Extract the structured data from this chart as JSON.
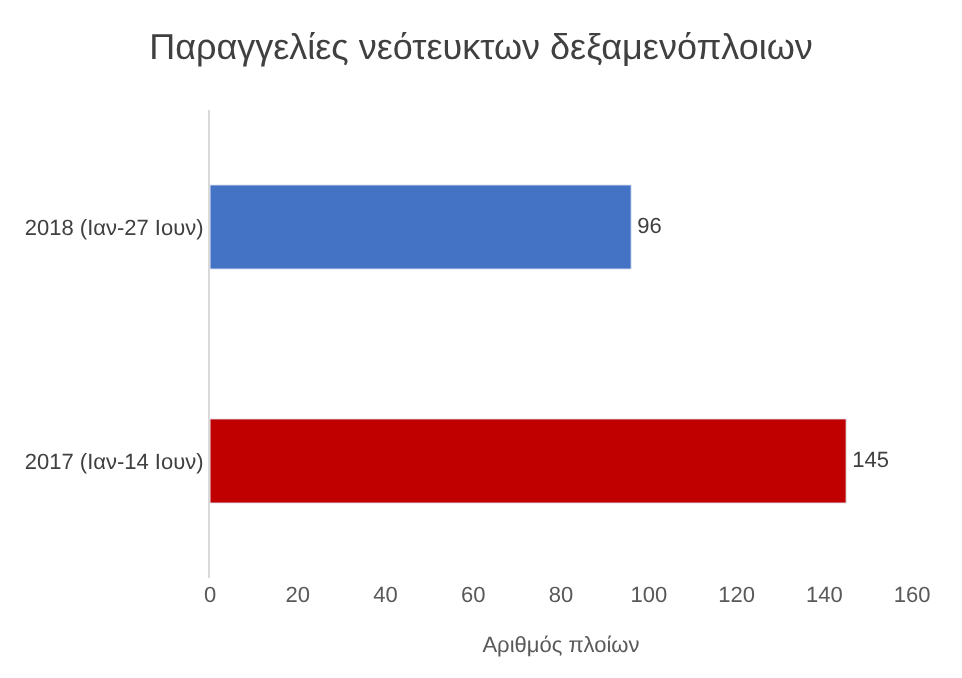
{
  "chart_data": {
    "type": "bar",
    "orientation": "horizontal",
    "title": "Παραγγελίες νεότευκτων δεξαμενόπλοιων",
    "xlabel": "Αριθμός πλοίων",
    "categories": [
      "2018 (Ιαν-27 Ιουν)",
      "2017 (Ιαν-14 Ιουν)"
    ],
    "values": [
      96,
      145
    ],
    "colors": [
      "#4472c4",
      "#c00000"
    ],
    "xlim": [
      0,
      160
    ],
    "xticks": [
      0,
      20,
      40,
      60,
      80,
      100,
      120,
      140,
      160
    ],
    "grid": false,
    "data_labels": true
  }
}
